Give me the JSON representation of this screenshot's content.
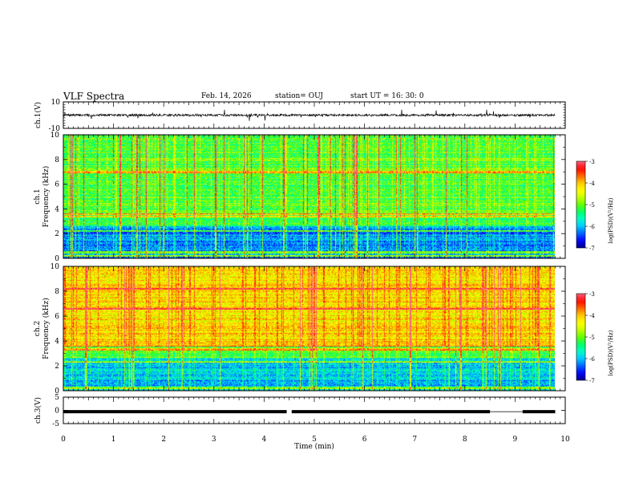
{
  "header": {
    "title": "VLF Spectra",
    "date": "Feb. 14, 2026",
    "station": "station= OUJ",
    "start_ut": "start  UT =   16: 30: 0"
  },
  "colors": {
    "trace": "#000000",
    "colormap": [
      "#00008b",
      "#0000ff",
      "#0064ff",
      "#00c8ff",
      "#00ffc8",
      "#00ff64",
      "#64ff00",
      "#c8ff00",
      "#ffff00",
      "#ffc800",
      "#ff6400",
      "#ff0000",
      "#ff6480",
      "#ffffff"
    ]
  },
  "chart_data": [
    {
      "type": "line",
      "name": "ch1-waveform",
      "ylabel": "ch.1(V)",
      "ylim": [
        -10,
        10
      ],
      "yticks": [
        "10",
        "-10"
      ],
      "baseline": 0,
      "xlim": [
        0,
        10
      ]
    },
    {
      "type": "heatmap",
      "name": "ch1-spectrogram",
      "ylabel": "ch.1\nFrequency (kHz)",
      "ylabel_lines": [
        "ch.1",
        "Frequency (kHz)"
      ],
      "ylim": [
        0,
        10
      ],
      "yticks": [
        "0",
        "2",
        "4",
        "6",
        "8",
        "10"
      ],
      "xlim": [
        0,
        9.8
      ],
      "colorbar": {
        "label": "log(PSD)(V²/Hz)",
        "range": [
          -7,
          -3
        ],
        "ticks": [
          "-3",
          "-4",
          "-5",
          "-6",
          "-7"
        ]
      },
      "base_level_high": -5.1,
      "base_level_low": -6.2,
      "strong_bands_khz": [
        0.15,
        0.45,
        2.2,
        3.35,
        3.55,
        7.0
      ],
      "seed": 11
    },
    {
      "type": "heatmap",
      "name": "ch2-spectrogram",
      "ylabel": "ch.2\nFrequency (kHz)",
      "ylabel_lines": [
        "ch.2",
        "Frequency (kHz)"
      ],
      "ylim": [
        0,
        10
      ],
      "yticks": [
        "0",
        "2",
        "4",
        "6",
        "8",
        "10"
      ],
      "xlim": [
        0,
        9.8
      ],
      "colorbar": {
        "label": "log(PSD)(V²/Hz)",
        "range": [
          -7,
          -3
        ],
        "ticks": [
          "-3",
          "-4",
          "-5",
          "-6",
          "-7"
        ]
      },
      "base_level_high": -4.2,
      "base_level_low": -6.0,
      "strong_bands_khz": [
        0.2,
        2.3,
        3.3,
        3.6,
        6.6,
        8.2
      ],
      "seed": 23
    },
    {
      "type": "line",
      "name": "ch3-level",
      "ylabel": "ch.3(V)",
      "ylim": [
        -5,
        5
      ],
      "yticks": [
        "5",
        "0",
        "-5"
      ],
      "level": -0.5,
      "gaps_min": [
        [
          4.45,
          4.55
        ],
        [
          8.5,
          9.15
        ]
      ],
      "xlim": [
        0,
        9.8
      ]
    }
  ],
  "xaxis": {
    "label": "Time (min)",
    "range": [
      0,
      10
    ],
    "ticks": [
      "0",
      "1",
      "2",
      "3",
      "4",
      "5",
      "6",
      "7",
      "8",
      "9",
      "10"
    ]
  }
}
